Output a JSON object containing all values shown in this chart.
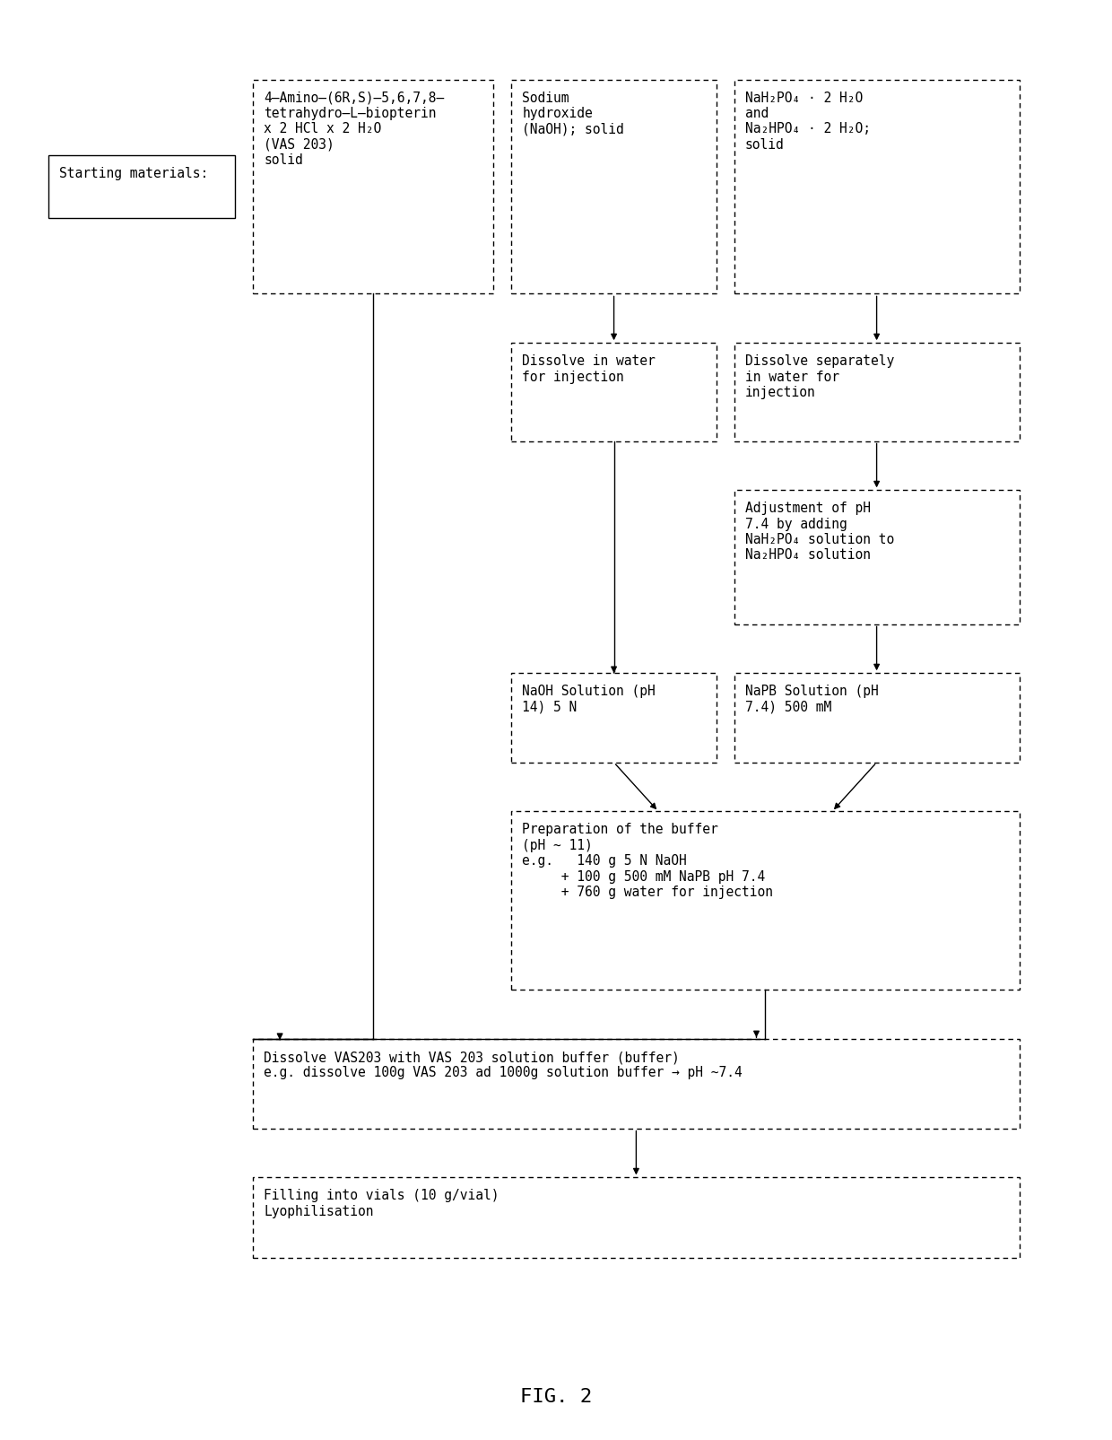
{
  "title": "FIG. 2",
  "background_color": "#ffffff",
  "font_size": 10.5,
  "title_font_size": 16,
  "figsize": [
    12.4,
    16.06
  ],
  "dpi": 100,
  "boxes": [
    {
      "id": "start",
      "text": "Starting materials:",
      "solid": true
    },
    {
      "id": "vas203",
      "text": "4–Amino–(6R,S)–5,6,7,8–\ntetrahydro–L–biopterin\nx 2 HCl x 2 H₂O\n(VAS 203)\nsolid",
      "solid": false
    },
    {
      "id": "naoh_solid",
      "text": "Sodium\nhydroxide\n(NaOH); solid",
      "solid": false
    },
    {
      "id": "phosphate_solid",
      "text": "NaH₂PO₄ · 2 H₂O\nand\nNa₂HPO₄ · 2 H₂O;\nsolid",
      "solid": false
    },
    {
      "id": "dissolve_naoh",
      "text": "Dissolve in water\nfor injection",
      "solid": false
    },
    {
      "id": "dissolve_phosphate",
      "text": "Dissolve separately\nin water for\ninjection",
      "solid": false
    },
    {
      "id": "adjustment",
      "text": "Adjustment of pH\n7.4 by adding\nNaH₂PO₄ solution to\nNa₂HPO₄ solution",
      "solid": false
    },
    {
      "id": "naoh_solution",
      "text": "NaOH Solution (pH\n14) 5 N",
      "solid": false
    },
    {
      "id": "napb_solution",
      "text": "NaPB Solution (pH\n7.4) 500 mM",
      "solid": false
    },
    {
      "id": "buffer_prep",
      "text": "Preparation of the buffer\n(pH ~ 11)\ne.g.   140 g 5 N NaOH\n     + 100 g 500 mM NaPB pH 7.4\n     + 760 g water for injection",
      "solid": false
    },
    {
      "id": "dissolve_vas",
      "text": "Dissolve VAS203 with VAS 203 solution buffer (buffer)\ne.g. dissolve 100g VAS 203 ad 1000g solution buffer → pH ~7.4",
      "solid": false
    },
    {
      "id": "filling",
      "text": "Filling into vials (10 g/vial)\nLyophilisation",
      "solid": false
    }
  ]
}
